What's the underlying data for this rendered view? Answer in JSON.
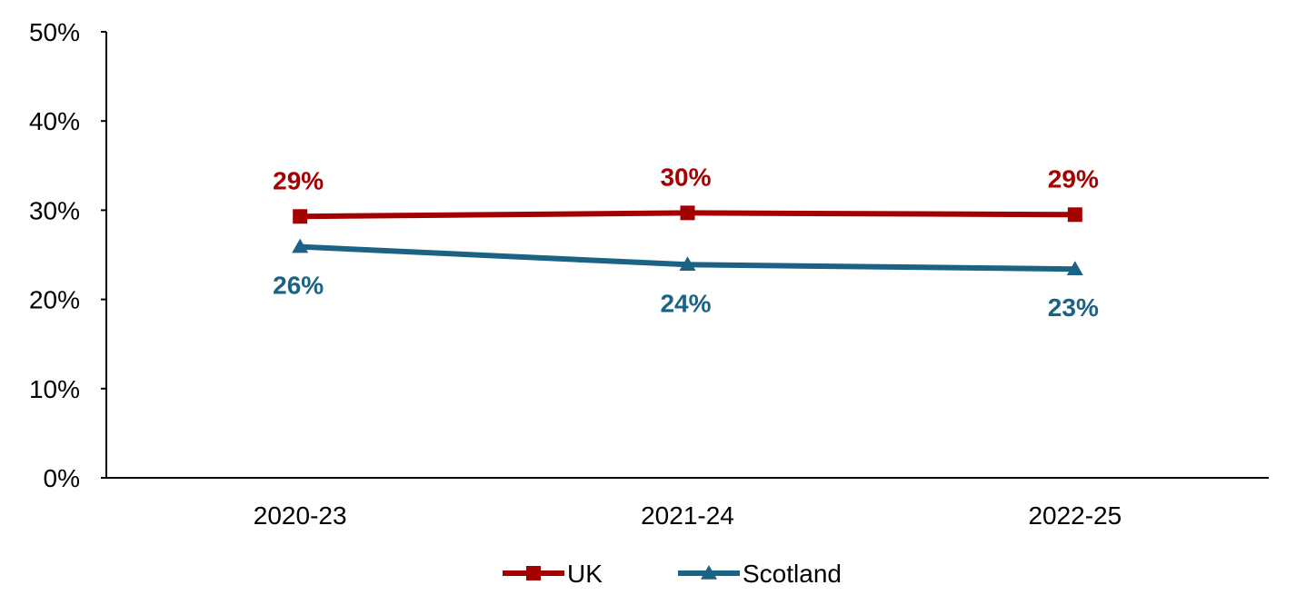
{
  "chart_data": {
    "type": "line",
    "categories": [
      "2020-23",
      "2021-24",
      "2022-25"
    ],
    "series": [
      {
        "name": "UK",
        "values": [
          29.3,
          29.7,
          29.5
        ],
        "labels": [
          "29%",
          "30%",
          "29%"
        ],
        "color": "#A50000",
        "marker": "square",
        "label_position": "above"
      },
      {
        "name": "Scotland",
        "values": [
          25.9,
          23.9,
          23.4
        ],
        "labels": [
          "26%",
          "24%",
          "23%"
        ],
        "color": "#1A6385",
        "marker": "triangle",
        "label_position": "below"
      }
    ],
    "ylim": [
      0,
      50
    ],
    "yticks": [
      0,
      10,
      20,
      30,
      40,
      50
    ],
    "ytick_labels": [
      "0%",
      "10%",
      "20%",
      "30%",
      "40%",
      "50%"
    ],
    "grid": false,
    "legend": "bottom"
  }
}
